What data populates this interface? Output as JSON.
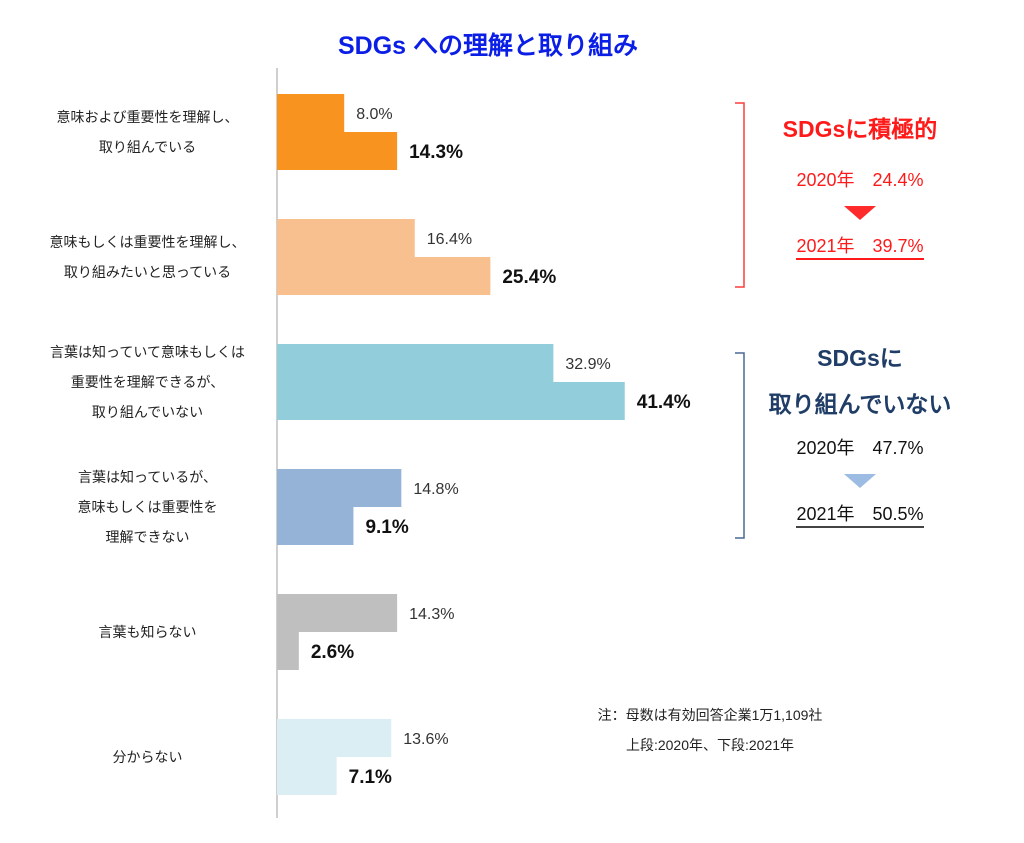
{
  "chart_data": {
    "type": "bar",
    "orientation": "horizontal",
    "title": "SDGs への理解と取り組み",
    "categories": [
      [
        "意味および重要性を理解し、",
        "取り組んでいる"
      ],
      [
        "意味もしくは重要性を理解し、",
        "取り組みたいと思っている"
      ],
      [
        "言葉は知っていて意味もしくは",
        "重要性を理解できるが、",
        "取り組んでいない"
      ],
      [
        "言葉は知っているが、",
        "意味もしくは重要性を",
        "理解できない"
      ],
      [
        "言葉も知らない"
      ],
      [
        "分からない"
      ]
    ],
    "series": [
      {
        "name": "2020年",
        "values": [
          8.0,
          16.4,
          32.9,
          14.8,
          14.3,
          13.6
        ]
      },
      {
        "name": "2021年",
        "values": [
          14.3,
          25.4,
          41.4,
          9.1,
          2.6,
          7.1
        ]
      }
    ],
    "labels_2020": [
      "8.0%",
      "16.4%",
      "32.9%",
      "14.8%",
      "14.3%",
      "13.6%"
    ],
    "labels_2021": [
      "14.3%",
      "25.4%",
      "41.4%",
      "9.1%",
      "2.6%",
      "7.1%"
    ],
    "colors": [
      "#F7931E",
      "#F9C08F",
      "#92CDDC",
      "#95B3D7",
      "#BFBFBF",
      "#DAEEF3"
    ],
    "xlim": [
      0,
      50
    ],
    "grid": false,
    "annotations": {
      "positive": {
        "title": "SDGsに積極的",
        "y2020": "2020年　24.4%",
        "y2021": "2021年　39.7%",
        "color": "#FF1A1A"
      },
      "negative": {
        "title1": "SDGsに",
        "title2": "取り組んでいない",
        "y2020": "2020年　47.7%",
        "y2021": "2021年　50.5%",
        "color": "#1F3D66"
      }
    },
    "note": {
      "line1": "注：母数は有効回答企業1万1,109社",
      "line2": "上段:2020年、下段:2021年"
    }
  }
}
